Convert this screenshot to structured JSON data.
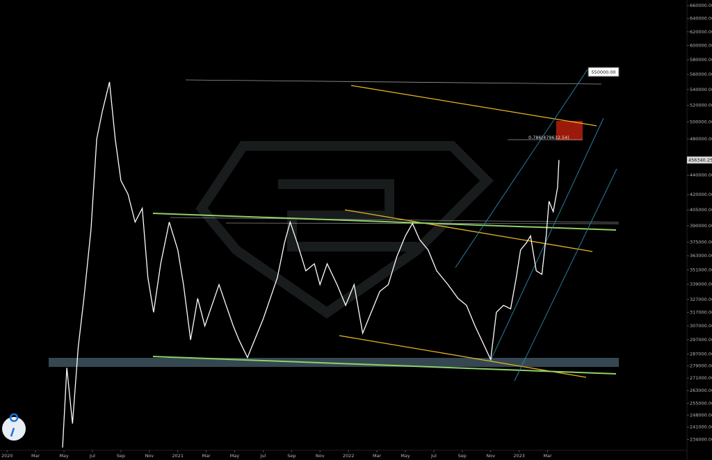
{
  "chart_data": {
    "type": "line",
    "x": [
      3.9,
      4.2,
      4.6,
      5.0,
      5.4,
      5.9,
      6.3,
      6.7,
      7.2,
      7.6,
      8.0,
      8.5,
      9.0,
      9.5,
      9.9,
      10.3,
      10.8,
      11.4,
      12.0,
      12.4,
      12.9,
      13.4,
      13.9,
      14.4,
      14.9,
      15.4,
      15.9,
      16.3,
      16.9,
      17.4,
      18.0,
      18.5,
      19.0,
      19.5,
      19.9,
      20.4,
      21.0,
      21.6,
      22.0,
      22.5,
      23.2,
      23.8,
      24.4,
      25.0,
      25.6,
      26.2,
      26.8,
      27.4,
      28.0,
      28.5,
      29.0,
      29.6,
      30.2,
      31.0,
      31.7,
      32.3,
      32.9,
      33.6,
      34.0,
      34.4,
      34.9,
      35.4,
      35.8,
      36.1,
      36.5,
      36.8,
      37.2,
      37.6,
      37.9,
      38.1,
      38.4,
      38.7,
      38.8
    ],
    "series": [
      {
        "color": "#ffffff",
        "values": [
          229500,
          277700,
          243000,
          291700,
          327800,
          386700,
          480000,
          513000,
          550000,
          480000,
          434500,
          420500,
          393400,
          406600,
          344500,
          317100,
          356100,
          393400,
          368100,
          338800,
          296800,
          327800,
          306900,
          322400,
          338800,
          322400,
          306900,
          296800,
          284600,
          296800,
          311900,
          327800,
          344500,
          374200,
          393400,
          374200,
          350200,
          356100,
          338800,
          356100,
          338800,
          322400,
          338800,
          301600,
          317100,
          333300,
          338800,
          362100,
          380600,
          392100,
          377400,
          368100,
          350200,
          338800,
          327800,
          322400,
          306900,
          291700,
          283200,
          317100,
          322400,
          319700,
          344500,
          368100,
          374200,
          380600,
          350200,
          347200,
          380600,
          413500,
          403300,
          427400,
          456340.25
        ]
      }
    ],
    "xlim": [
      -0.5,
      47.8
    ],
    "xticks": [
      {
        "value": 0,
        "label": "2020"
      },
      {
        "value": 2,
        "label": "Mar"
      },
      {
        "value": 4,
        "label": "May"
      },
      {
        "value": 6,
        "label": "Jul"
      },
      {
        "value": 8,
        "label": "Sep"
      },
      {
        "value": 10,
        "label": "Nov"
      },
      {
        "value": 12,
        "label": "2021"
      },
      {
        "value": 14,
        "label": "Mar"
      },
      {
        "value": 16,
        "label": "May"
      },
      {
        "value": 18,
        "label": "Jul"
      },
      {
        "value": 20,
        "label": "Sep"
      },
      {
        "value": 22,
        "label": "Nov"
      },
      {
        "value": 24,
        "label": "2022"
      },
      {
        "value": 26,
        "label": "Mar"
      },
      {
        "value": 28,
        "label": "May"
      },
      {
        "value": 30,
        "label": "Jul"
      },
      {
        "value": 32,
        "label": "Sep"
      },
      {
        "value": 34,
        "label": "Nov"
      },
      {
        "value": 36,
        "label": "2023"
      },
      {
        "value": 38,
        "label": "Mar"
      }
    ],
    "ylim": [
      228000,
      669000
    ],
    "log_scale": true,
    "yticks": [
      {
        "value": 660000,
        "label": "660000.00"
      },
      {
        "value": 640000,
        "label": "640000.00"
      },
      {
        "value": 620000,
        "label": "620000.00"
      },
      {
        "value": 600000,
        "label": "600000.00"
      },
      {
        "value": 580000,
        "label": "580000.00"
      },
      {
        "value": 560000,
        "label": "560000.00"
      },
      {
        "value": 540000,
        "label": "540000.00"
      },
      {
        "value": 520000,
        "label": "520000.00"
      },
      {
        "value": 500000,
        "label": "500000.00"
      },
      {
        "value": 480000,
        "label": "480000.00"
      },
      {
        "value": 440000,
        "label": "440000.00"
      },
      {
        "value": 420000,
        "label": "420000.00"
      },
      {
        "value": 405000,
        "label": "405000.00"
      },
      {
        "value": 390000,
        "label": "390000.00"
      },
      {
        "value": 375000,
        "label": "375000.00"
      },
      {
        "value": 363000,
        "label": "363000.00"
      },
      {
        "value": 351000,
        "label": "351000.00"
      },
      {
        "value": 339000,
        "label": "339000.00"
      },
      {
        "value": 327000,
        "label": "327000.00"
      },
      {
        "value": 317000,
        "label": "317000.00"
      },
      {
        "value": 307000,
        "label": "307000.00"
      },
      {
        "value": 297000,
        "label": "297000.00"
      },
      {
        "value": 287000,
        "label": "287000.00"
      },
      {
        "value": 279000,
        "label": "279000.00"
      },
      {
        "value": 271000,
        "label": "271000.00"
      },
      {
        "value": 263000,
        "label": "263000.00"
      },
      {
        "value": 255000,
        "label": "255000.00"
      },
      {
        "value": 248000,
        "label": "248000.00"
      },
      {
        "value": 241000,
        "label": "241000.00"
      },
      {
        "value": 234000,
        "label": "234000.00"
      }
    ],
    "grid": false,
    "annotations": [
      "550000.00",
      "0.786(479632.54)"
    ]
  }
}
